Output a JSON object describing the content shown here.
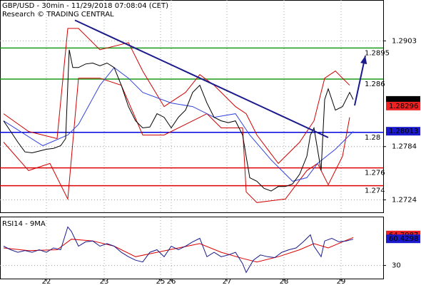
{
  "chart_data": [
    {
      "type": "line",
      "title": "GBP/USD - 30min - 11/29/2018 07:08:04 (CET)",
      "subtitle": "Research © TRADING CENTRAL",
      "xlim": [
        0,
        537
      ],
      "ylim": [
        1.271,
        1.2949
      ],
      "yticks": [
        1.2903,
        1.2784,
        1.2724
      ],
      "xticks": [
        {
          "value": 65,
          "label": "22"
        },
        {
          "value": 146,
          "label": "23"
        },
        {
          "value": 225,
          "label": "25"
        },
        {
          "value": 240,
          "label": "26"
        },
        {
          "value": 318,
          "label": "27"
        },
        {
          "value": 398,
          "label": "28"
        },
        {
          "value": 478,
          "label": "29"
        }
      ],
      "levels": [
        {
          "value": 1.2895,
          "color": "#1a9a1a"
        },
        {
          "value": 1.286,
          "color": "#1a9a1a"
        },
        {
          "value": 1.28,
          "color": "#0000dd"
        },
        {
          "value": 1.276,
          "color": "#dd0000"
        },
        {
          "value": 1.274,
          "color": "#dd0000"
        }
      ],
      "trendline": {
        "x": [
          105,
          460
        ],
        "values": [
          1.29262,
          1.27942
        ],
        "color": "#1a1a8c"
      },
      "arrow": {
        "x": [
          497,
          512
        ],
        "values": [
          1.28302,
          1.28862
        ],
        "color": "#1a1a8c"
      },
      "price_tags": [
        {
          "value": 1.2836,
          "color": "#000000"
        },
        {
          "value": 1.28296,
          "color": "#ee2222"
        },
        {
          "value": 1.28013,
          "color": "#1a1acc"
        }
      ],
      "series": [
        {
          "color": "#d00000",
          "x": [
            5,
            40,
            80,
            95,
            110,
            140,
            180,
            200,
            230,
            260,
            280,
            300,
            330,
            345,
            360,
            390,
            420,
            440,
            455,
            470,
            490
          ],
          "values": [
            1.2821,
            1.2801,
            1.2793,
            1.2917,
            1.2917,
            1.2893,
            1.2901,
            1.2869,
            1.2829,
            1.2845,
            1.2865,
            1.2853,
            1.2829,
            1.2821,
            1.2797,
            1.2765,
            1.2789,
            1.2813,
            1.2861,
            1.2869,
            1.2853
          ]
        },
        {
          "color": "#d00000",
          "x": [
            5,
            40,
            70,
            95,
            110,
            140,
            170,
            200,
            230,
            260,
            290,
            310,
            340,
            345,
            360,
            400,
            430,
            445,
            460,
            480,
            490
          ],
          "values": [
            1.2789,
            1.2757,
            1.2765,
            1.2725,
            1.2861,
            1.2861,
            1.2853,
            1.2797,
            1.2797,
            1.2809,
            1.2821,
            1.2805,
            1.2805,
            1.2733,
            1.2721,
            1.2725,
            1.2757,
            1.2765,
            1.2741,
            1.2773,
            1.2817
          ]
        },
        {
          "color": "#3344dd",
          "x": [
            5,
            60,
            95,
            110,
            140,
            160,
            180,
            200,
            240,
            270,
            300,
            330,
            350,
            380,
            410,
            430,
            445,
            470,
            495
          ],
          "values": [
            1.2813,
            1.2785,
            1.2797,
            1.2809,
            1.2853,
            1.2873,
            1.2861,
            1.2845,
            1.2833,
            1.2829,
            1.2817,
            1.2821,
            1.2797,
            1.2769,
            1.2745,
            1.2749,
            1.2765,
            1.2781,
            1.2801
          ]
        },
        {
          "color": "#000000",
          "x": [
            5,
            15,
            25,
            35,
            45,
            55,
            65,
            75,
            85,
            92,
            97,
            102,
            110,
            120,
            130,
            140,
            150,
            160,
            170,
            180,
            190,
            200,
            210,
            220,
            230,
            240,
            250,
            260,
            270,
            280,
            290,
            300,
            310,
            320,
            330,
            340,
            345,
            350,
            360,
            370,
            380,
            390,
            400,
            410,
            420,
            430,
            435,
            440,
            445,
            450,
            455,
            460,
            470,
            480,
            490,
            495
          ],
          "values": [
            1.2813,
            1.2801,
            1.2789,
            1.2778,
            1.2777,
            1.2779,
            1.2781,
            1.2782,
            1.2785,
            1.2793,
            1.2893,
            1.2873,
            1.2873,
            1.2877,
            1.2878,
            1.2875,
            1.2878,
            1.2873,
            1.2853,
            1.2829,
            1.2813,
            1.2805,
            1.2806,
            1.2821,
            1.2817,
            1.2805,
            1.2817,
            1.2825,
            1.2845,
            1.2853,
            1.2833,
            1.2817,
            1.2813,
            1.2811,
            1.2813,
            1.2797,
            1.2773,
            1.2749,
            1.2745,
            1.2737,
            1.2734,
            1.2739,
            1.2739,
            1.2742,
            1.2753,
            1.2773,
            1.2797,
            1.2805,
            1.2781,
            1.2757,
            1.2837,
            1.2849,
            1.2825,
            1.2829,
            1.2845,
            1.2837
          ]
        }
      ]
    },
    {
      "type": "line",
      "title": "RSI14 - 9MA",
      "xlim": [
        0,
        537
      ],
      "ylim": [
        15,
        85
      ],
      "yticks": [
        30
      ],
      "price_tags": [
        {
          "value": 64.7987,
          "color": "#ee2222"
        },
        {
          "value": 60.4298,
          "color": "#1a1acc"
        }
      ],
      "series": [
        {
          "color": "#dd0000",
          "x": [
            5,
            40,
            80,
            100,
            130,
            160,
            190,
            220,
            250,
            280,
            310,
            340,
            360,
            390,
            420,
            440,
            460,
            480,
            495
          ],
          "values": [
            50,
            47,
            48,
            60,
            58,
            52,
            40,
            45,
            50,
            55,
            45,
            38,
            34,
            40,
            48,
            55,
            50,
            57,
            62
          ]
        },
        {
          "color": "#1a1a8c",
          "x": [
            5,
            15,
            25,
            35,
            45,
            55,
            65,
            75,
            85,
            95,
            100,
            110,
            120,
            130,
            140,
            150,
            160,
            170,
            180,
            190,
            200,
            210,
            220,
            230,
            240,
            250,
            260,
            270,
            280,
            290,
            300,
            310,
            320,
            330,
            340,
            345,
            355,
            365,
            375,
            385,
            395,
            405,
            415,
            425,
            435,
            440,
            450,
            455,
            465,
            475,
            485,
            495
          ],
          "values": [
            52,
            48,
            45,
            47,
            45,
            48,
            45,
            50,
            48,
            74,
            69,
            52,
            57,
            58,
            52,
            55,
            52,
            45,
            40,
            36,
            34,
            45,
            48,
            40,
            52,
            48,
            52,
            57,
            61,
            40,
            45,
            40,
            42,
            45,
            32,
            22,
            36,
            42,
            40,
            39,
            45,
            48,
            50,
            57,
            65,
            52,
            40,
            58,
            61,
            57,
            58,
            60
          ]
        }
      ]
    }
  ]
}
